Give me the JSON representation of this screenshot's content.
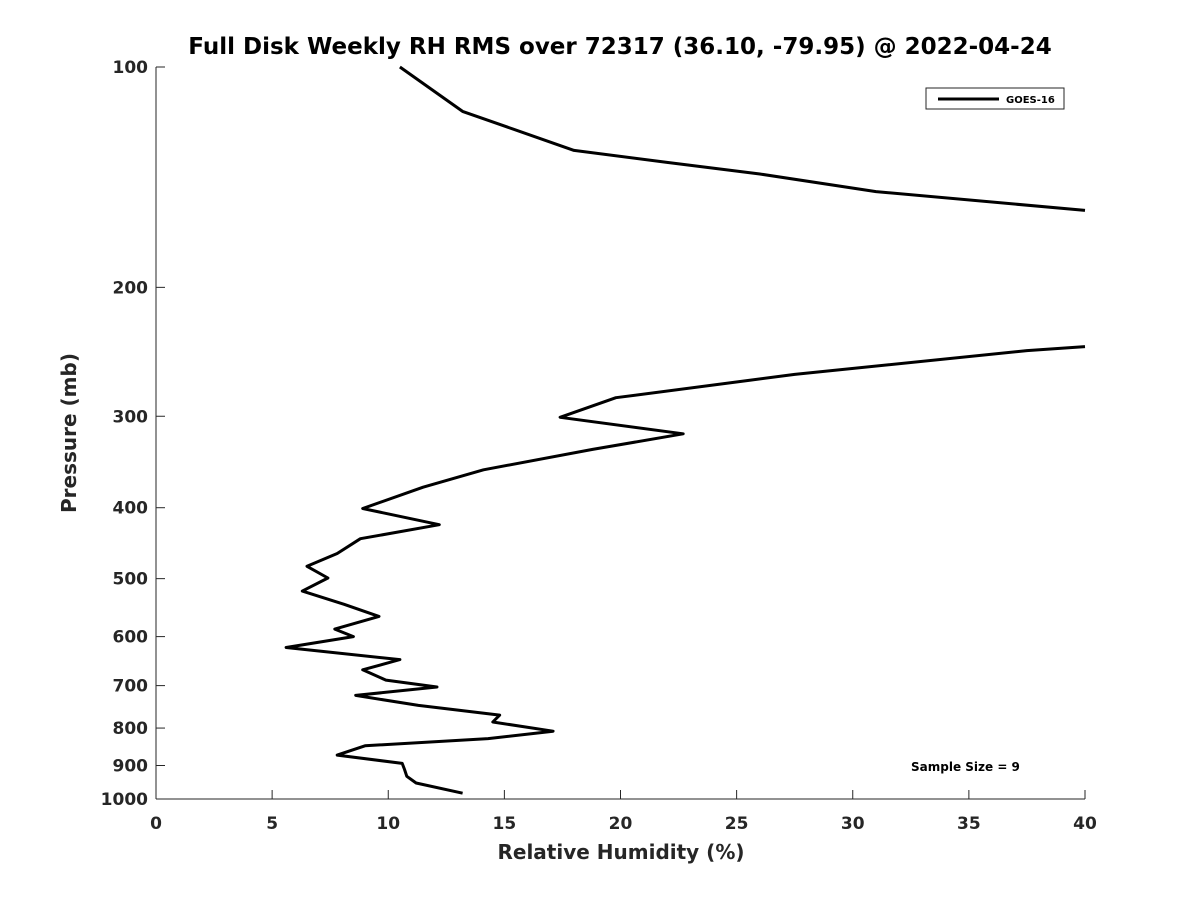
{
  "chart_data": {
    "type": "line",
    "title": "Full Disk Weekly RH RMS over 72317 (36.10, -79.95) @ 2022-04-24",
    "xlabel": "Relative Humidity (%)",
    "ylabel": "Pressure (mb)",
    "xlim": [
      0,
      40
    ],
    "ylim": [
      100,
      1000
    ],
    "y_scale": "log",
    "y_reversed": true,
    "x_ticks": [
      "0",
      "5",
      "10",
      "15",
      "20",
      "25",
      "30",
      "35",
      "40"
    ],
    "y_ticks": [
      "100",
      "200",
      "300",
      "400",
      "500",
      "600",
      "700",
      "800",
      "900",
      "1000"
    ],
    "grid": false,
    "legend_position": "top-right",
    "annotation": "Sample Size = 9",
    "colors": {
      "series": "#000000",
      "text": "#262626",
      "axes": "#262626"
    },
    "series": [
      {
        "name": "GOES-16",
        "segments": [
          [
            {
              "x": 10.5,
              "y": 100
            },
            {
              "x": 13.2,
              "y": 115
            },
            {
              "x": 18.0,
              "y": 130
            },
            {
              "x": 22.0,
              "y": 135
            },
            {
              "x": 26.0,
              "y": 140
            },
            {
              "x": 31.0,
              "y": 148
            },
            {
              "x": 40.0,
              "y": 157
            }
          ],
          [
            {
              "x": 40.0,
              "y": 241
            },
            {
              "x": 37.5,
              "y": 244
            },
            {
              "x": 27.5,
              "y": 263
            },
            {
              "x": 19.8,
              "y": 283
            },
            {
              "x": 17.4,
              "y": 301
            },
            {
              "x": 22.7,
              "y": 317
            },
            {
              "x": 18.8,
              "y": 333
            },
            {
              "x": 14.1,
              "y": 355
            },
            {
              "x": 11.5,
              "y": 375
            },
            {
              "x": 8.9,
              "y": 401
            },
            {
              "x": 12.2,
              "y": 422
            },
            {
              "x": 8.8,
              "y": 441
            },
            {
              "x": 7.8,
              "y": 462
            },
            {
              "x": 6.5,
              "y": 481
            },
            {
              "x": 7.4,
              "y": 499
            },
            {
              "x": 6.3,
              "y": 520
            },
            {
              "x": 8.1,
              "y": 542
            },
            {
              "x": 9.6,
              "y": 563
            },
            {
              "x": 7.7,
              "y": 586
            },
            {
              "x": 8.5,
              "y": 600
            },
            {
              "x": 5.6,
              "y": 621
            },
            {
              "x": 10.5,
              "y": 645
            },
            {
              "x": 8.9,
              "y": 666
            },
            {
              "x": 9.9,
              "y": 688
            },
            {
              "x": 12.1,
              "y": 703
            },
            {
              "x": 8.6,
              "y": 722
            },
            {
              "x": 11.3,
              "y": 745
            },
            {
              "x": 14.8,
              "y": 768
            },
            {
              "x": 14.5,
              "y": 785
            },
            {
              "x": 17.1,
              "y": 808
            },
            {
              "x": 14.3,
              "y": 827
            },
            {
              "x": 9.0,
              "y": 846
            },
            {
              "x": 7.8,
              "y": 871
            },
            {
              "x": 10.6,
              "y": 894
            },
            {
              "x": 10.7,
              "y": 911
            },
            {
              "x": 10.8,
              "y": 931
            },
            {
              "x": 11.2,
              "y": 951
            },
            {
              "x": 13.2,
              "y": 982
            }
          ]
        ]
      }
    ]
  }
}
